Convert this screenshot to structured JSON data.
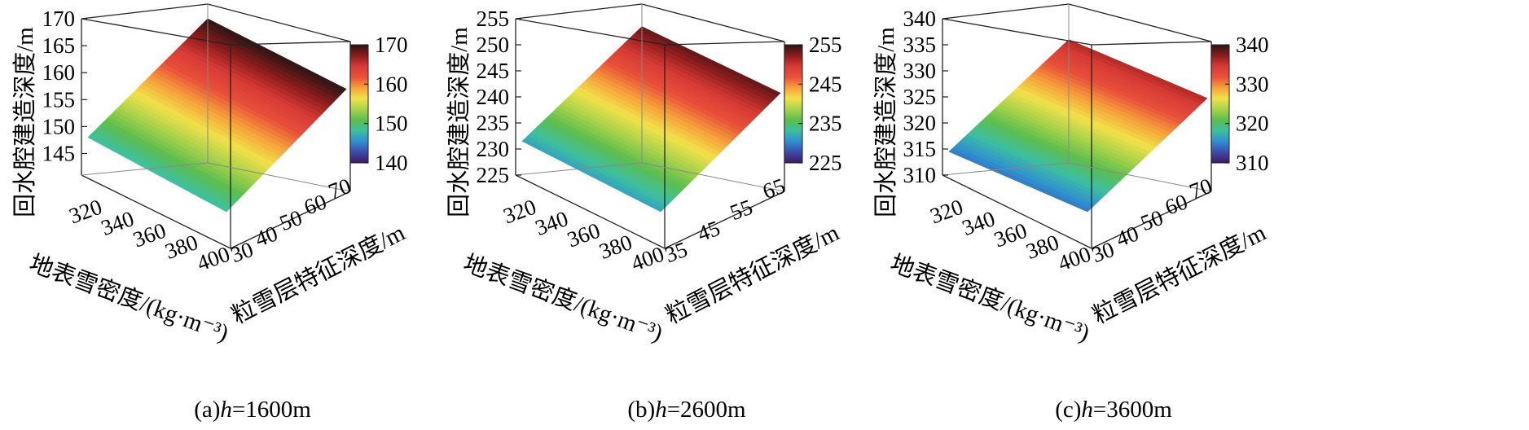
{
  "chart_data": [
    {
      "type": "surface3d",
      "caption_prefix": "(a)",
      "caption_var": "h",
      "caption_value": "=1600m",
      "zlabel": "回水腔建造深度/m",
      "xlabel": "地表雪密度/(kg·m⁻³)",
      "ylabel": "粒雪层特征深度/m",
      "xticks": [
        "320",
        "340",
        "360",
        "380",
        "400"
      ],
      "yticks": [
        "30",
        "40",
        "50",
        "60",
        "70"
      ],
      "zticks": [
        "145",
        "150",
        "155",
        "160",
        "165",
        "170"
      ],
      "zlim": [
        141,
        170
      ],
      "corners": {
        "x320_y30": 148,
        "x400_y30": 141,
        "x320_y70": 170,
        "x400_y70": 163
      },
      "colorbar": {
        "ticks": [
          "140",
          "150",
          "160",
          "170"
        ],
        "range": [
          140,
          170
        ]
      }
    },
    {
      "type": "surface3d",
      "caption_prefix": "(b)",
      "caption_var": "h",
      "caption_value": "=2600m",
      "zlabel": "回水腔建造深度/m",
      "xlabel": "地表雪密度/(kg·m⁻³)",
      "ylabel": "粒雪层特征深度/m",
      "xticks": [
        "320",
        "340",
        "360",
        "380",
        "400"
      ],
      "yticks": [
        "35",
        "45",
        "55",
        "65"
      ],
      "zticks": [
        "225",
        "230",
        "235",
        "240",
        "245",
        "250",
        "255"
      ],
      "zlim": [
        225,
        255
      ],
      "corners": {
        "x320_y30": 231.5,
        "x400_y30": 225,
        "x320_y70": 253.5,
        "x400_y70": 247
      },
      "colorbar": {
        "ticks": [
          "225",
          "235",
          "245",
          "255"
        ],
        "range": [
          225,
          255
        ]
      }
    },
    {
      "type": "surface3d",
      "caption_prefix": "(c)",
      "caption_var": "h",
      "caption_value": "=3600m",
      "zlabel": "回水腔建造深度/m",
      "xlabel": "地表雪密度/(kg·m⁻³)",
      "ylabel": "粒雪层特征深度/m",
      "xticks": [
        "320",
        "340",
        "360",
        "380",
        "400"
      ],
      "yticks": [
        "30",
        "40",
        "50",
        "60",
        "70"
      ],
      "zticks": [
        "310",
        "315",
        "320",
        "325",
        "330",
        "335",
        "340"
      ],
      "zlim": [
        310,
        340
      ],
      "corners": {
        "x320_y30": 314.5,
        "x400_y30": 310,
        "x320_y70": 336,
        "x400_y70": 331
      },
      "colorbar": {
        "ticks": [
          "310",
          "320",
          "330",
          "340"
        ],
        "range": [
          310,
          340
        ]
      }
    }
  ],
  "colormap": [
    "#3d1a5e",
    "#3f4aa8",
    "#2f8fd0",
    "#3dbfa0",
    "#5cbe4e",
    "#a9d24a",
    "#f1e14a",
    "#f6a13a",
    "#e8503a",
    "#d73a35",
    "#8a1c1c",
    "#2a1515"
  ]
}
